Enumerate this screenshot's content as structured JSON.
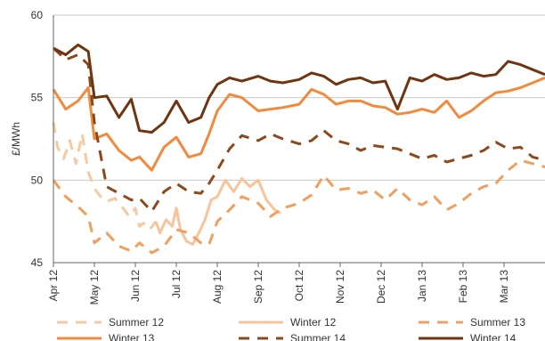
{
  "chart_data": {
    "type": "line",
    "title": "",
    "xlabel": "",
    "ylabel": "£/MWh",
    "ylim": [
      45,
      60
    ],
    "yticks": [
      45,
      50,
      55,
      60
    ],
    "xticks": [
      "Apr 12",
      "May 12",
      "Jun 12",
      "Jul 12",
      "Aug 12",
      "Sep 12",
      "Oct 12",
      "Nov 12",
      "Dec 12",
      "Jan 13",
      "Feb 13",
      "Mar 13"
    ],
    "x_start": "Apr 12",
    "x_end": "Apr 13",
    "grid": "horizontal",
    "legend_position": "bottom",
    "series": [
      {
        "name": "Summer 12",
        "color": "#f6c9a0",
        "dash": "long-dash",
        "x": [
          0,
          0.1,
          0.25,
          0.4,
          0.55,
          0.7,
          0.85,
          1.0,
          1.15,
          1.3,
          1.5,
          1.7,
          1.85,
          2.0,
          2.1,
          2.2,
          2.35,
          2.5
        ],
        "values": [
          53.5,
          52.0,
          51.3,
          52.4,
          51.0,
          52.8,
          50.5,
          49.5,
          49.0,
          48.7,
          48.9,
          48.3,
          47.8,
          48.3,
          47.2,
          47.4,
          47.0,
          47.5
        ]
      },
      {
        "name": "Winter 12",
        "color": "#f7c49a",
        "dash": "solid",
        "x": [
          2.5,
          2.6,
          2.75,
          2.9,
          3.0,
          3.1,
          3.25,
          3.4,
          3.55,
          3.7,
          3.85,
          4.0,
          4.2,
          4.4,
          4.6,
          4.8,
          5.0,
          5.2,
          5.4,
          5.55
        ],
        "values": [
          47.5,
          46.8,
          47.6,
          47.2,
          48.3,
          47.0,
          46.3,
          46.1,
          46.8,
          47.6,
          48.8,
          49.0,
          50.0,
          49.3,
          50.1,
          49.6,
          50.0,
          48.8,
          48.2,
          48.0
        ]
      },
      {
        "name": "Summer 13",
        "color": "#ef9f5f",
        "dash": "long-dash",
        "x": [
          0,
          0.3,
          0.6,
          0.85,
          1.0,
          1.3,
          1.6,
          1.9,
          2.1,
          2.4,
          2.7,
          3.0,
          3.3,
          3.6,
          3.8,
          4.0,
          4.3,
          4.6,
          5.0,
          5.3,
          5.6,
          6.0,
          6.3,
          6.6,
          6.9,
          7.2,
          7.5,
          7.8,
          8.1,
          8.4,
          8.7,
          9.0,
          9.3,
          9.6,
          9.9,
          10.2,
          10.5,
          10.8,
          11.1,
          11.4,
          11.7,
          12.0
        ],
        "values": [
          50.0,
          49.0,
          48.4,
          47.8,
          46.2,
          46.8,
          46.0,
          45.7,
          46.2,
          45.6,
          46.0,
          47.0,
          46.8,
          46.2,
          46.1,
          47.5,
          48.2,
          49.0,
          48.6,
          47.8,
          48.3,
          48.6,
          49.1,
          50.3,
          49.4,
          49.5,
          49.2,
          49.4,
          48.8,
          49.5,
          48.8,
          48.5,
          49.0,
          48.2,
          48.6,
          49.2,
          49.6,
          49.8,
          50.6,
          51.2,
          51.0,
          50.8
        ]
      },
      {
        "name": "Winter 13",
        "color": "#f08a3c",
        "dash": "solid",
        "x": [
          0,
          0.3,
          0.6,
          0.85,
          1.0,
          1.3,
          1.6,
          1.9,
          2.1,
          2.4,
          2.7,
          3.0,
          3.3,
          3.6,
          3.8,
          4.0,
          4.3,
          4.6,
          5.0,
          5.3,
          5.6,
          6.0,
          6.3,
          6.6,
          6.9,
          7.2,
          7.5,
          7.8,
          8.1,
          8.4,
          8.7,
          9.0,
          9.3,
          9.6,
          9.9,
          10.2,
          10.5,
          10.8,
          11.1,
          11.4,
          11.7,
          12.0
        ],
        "values": [
          55.5,
          54.3,
          54.8,
          55.6,
          52.5,
          52.8,
          51.8,
          51.2,
          51.4,
          50.6,
          52.0,
          52.6,
          51.4,
          51.6,
          52.8,
          54.2,
          55.2,
          55.0,
          54.2,
          54.3,
          54.4,
          54.6,
          55.5,
          55.2,
          54.6,
          54.8,
          54.8,
          54.5,
          54.4,
          54.0,
          54.1,
          54.3,
          54.1,
          54.8,
          53.8,
          54.2,
          54.8,
          55.3,
          55.4,
          55.6,
          55.9,
          56.2
        ]
      },
      {
        "name": "Summer 14",
        "color": "#8c4a1c",
        "dash": "long-dash",
        "x": [
          0,
          0.3,
          0.6,
          0.85,
          1.0,
          1.3,
          1.6,
          1.9,
          2.1,
          2.4,
          2.7,
          3.0,
          3.3,
          3.6,
          3.8,
          4.0,
          4.3,
          4.6,
          5.0,
          5.3,
          5.6,
          6.0,
          6.3,
          6.6,
          6.9,
          7.2,
          7.5,
          7.8,
          8.1,
          8.4,
          8.7,
          9.0,
          9.3,
          9.6,
          9.9,
          10.2,
          10.5,
          10.8,
          11.1,
          11.4,
          11.7,
          12.0
        ],
        "values": [
          58.0,
          57.3,
          57.6,
          57.0,
          53.5,
          49.6,
          49.2,
          48.8,
          48.9,
          48.1,
          49.3,
          49.8,
          49.3,
          49.2,
          49.8,
          50.6,
          51.9,
          52.7,
          52.4,
          52.8,
          52.5,
          52.2,
          52.4,
          53.0,
          52.4,
          52.2,
          51.8,
          52.1,
          52.0,
          51.9,
          51.6,
          51.3,
          51.5,
          51.1,
          51.3,
          51.5,
          51.8,
          52.3,
          51.9,
          52.0,
          51.4,
          51.2
        ]
      },
      {
        "name": "Winter 14",
        "color": "#6e3510",
        "dash": "solid",
        "x": [
          0,
          0.3,
          0.6,
          0.85,
          1.0,
          1.3,
          1.6,
          1.9,
          2.1,
          2.4,
          2.7,
          3.0,
          3.3,
          3.6,
          3.8,
          4.0,
          4.3,
          4.6,
          5.0,
          5.3,
          5.6,
          6.0,
          6.3,
          6.6,
          6.9,
          7.2,
          7.5,
          7.8,
          8.1,
          8.4,
          8.7,
          9.0,
          9.3,
          9.6,
          9.9,
          10.2,
          10.5,
          10.8,
          11.1,
          11.4,
          11.7,
          12.0
        ],
        "values": [
          58.0,
          57.6,
          58.2,
          57.8,
          55.0,
          55.1,
          53.8,
          54.9,
          53.0,
          52.9,
          53.5,
          54.8,
          53.5,
          53.8,
          55.0,
          55.8,
          56.2,
          56.0,
          56.3,
          56.0,
          55.9,
          56.1,
          56.5,
          56.3,
          55.8,
          56.1,
          56.2,
          55.9,
          56.0,
          54.3,
          56.2,
          56.0,
          56.4,
          56.1,
          56.2,
          56.5,
          56.3,
          56.4,
          57.2,
          57.0,
          56.7,
          56.4
        ]
      }
    ]
  }
}
